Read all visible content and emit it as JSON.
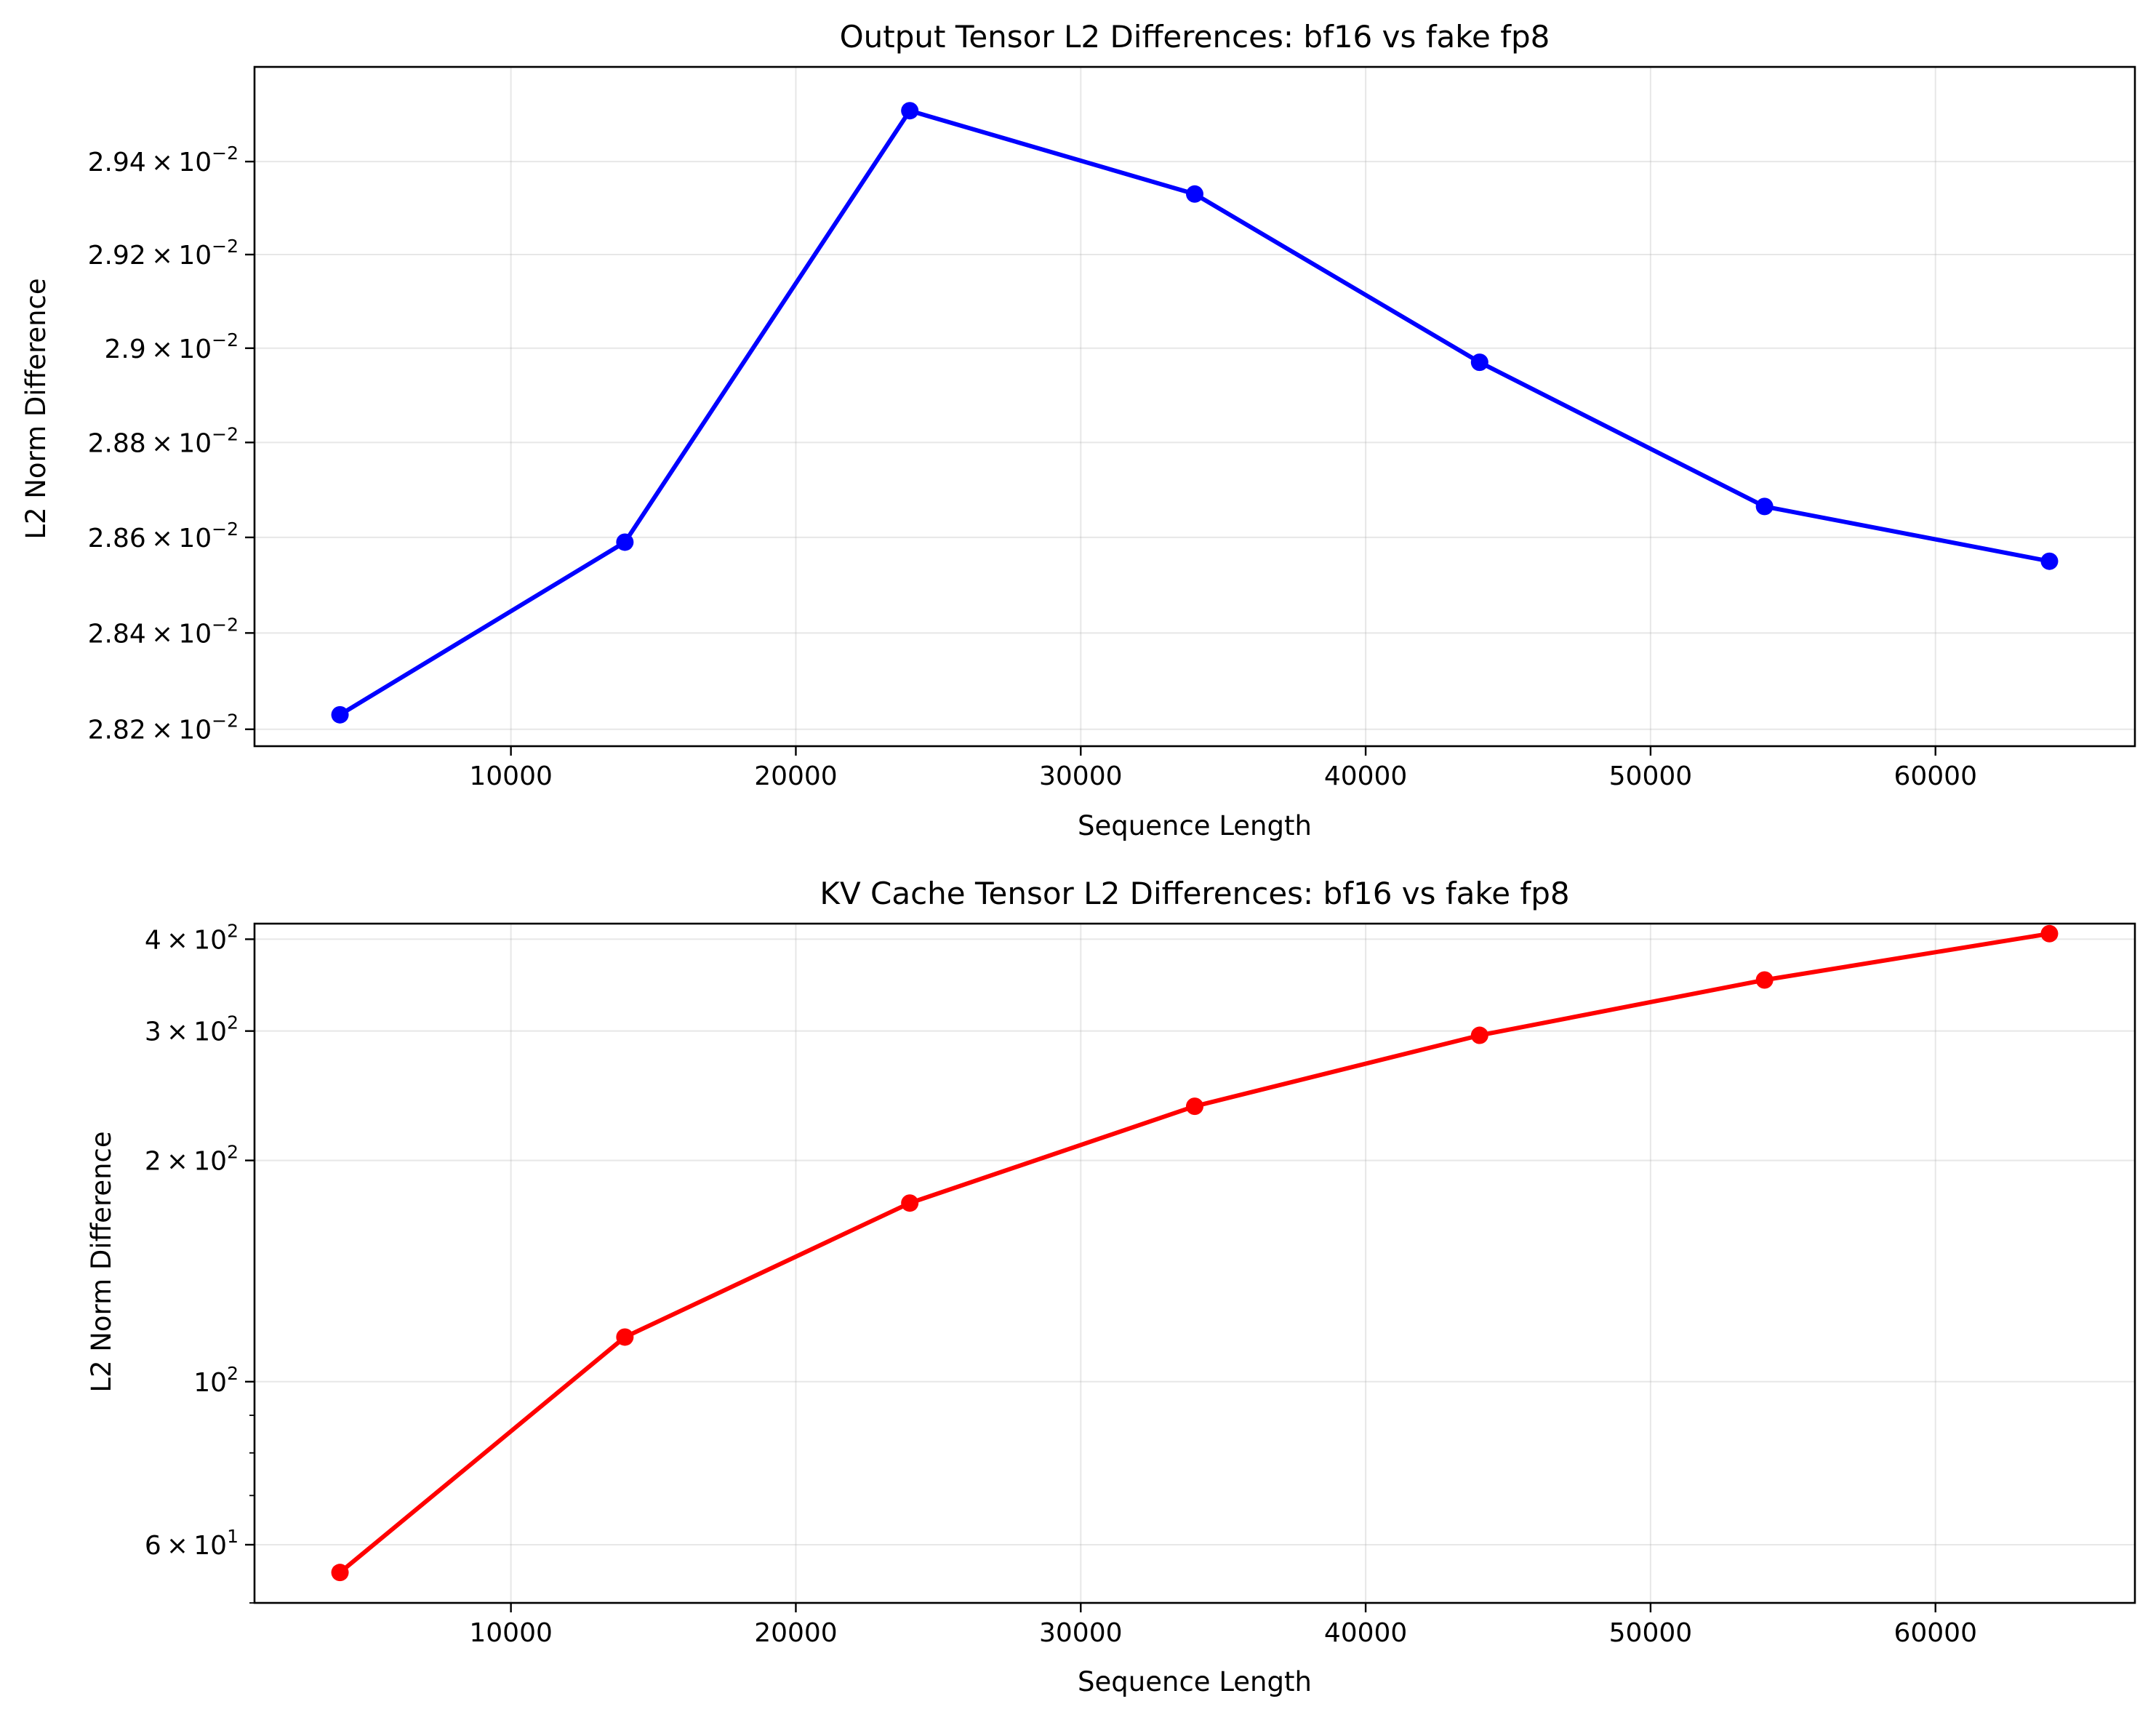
{
  "chart_data": [
    {
      "type": "line",
      "title": "Output Tensor L2 Differences: bf16 vs fake fp8",
      "xlabel": "Sequence Length",
      "ylabel": "L2 Norm Difference",
      "yscale": "log",
      "grid": true,
      "x": [
        4000,
        14000,
        24000,
        34000,
        44000,
        54000,
        64000
      ],
      "series": [
        {
          "values": [
            0.02823,
            0.02859,
            0.02951,
            0.02933,
            0.02897,
            0.028665,
            0.02855
          ],
          "color": "#0000ff",
          "marker": "circle"
        }
      ],
      "xlim": [
        1000,
        67000
      ],
      "ylim": [
        0.028165,
        0.029605
      ],
      "xticks": [
        10000,
        20000,
        30000,
        40000,
        50000,
        60000
      ],
      "xtick_labels": [
        "10000",
        "20000",
        "30000",
        "40000",
        "50000",
        "60000"
      ],
      "yticks": [
        0.0282,
        0.0284,
        0.0286,
        0.0288,
        0.029,
        0.0292,
        0.0294
      ],
      "ytick_labels": [
        {
          "mantissa": "2.82",
          "times": "×",
          "base": "10",
          "exp": "−2"
        },
        {
          "mantissa": "2.84",
          "times": "×",
          "base": "10",
          "exp": "−2"
        },
        {
          "mantissa": "2.86",
          "times": "×",
          "base": "10",
          "exp": "−2"
        },
        {
          "mantissa": "2.88",
          "times": "×",
          "base": "10",
          "exp": "−2"
        },
        {
          "mantissa": "2.9",
          "times": "×",
          "base": "10",
          "exp": "−2"
        },
        {
          "mantissa": "2.92",
          "times": "×",
          "base": "10",
          "exp": "−2"
        },
        {
          "mantissa": "2.94",
          "times": "×",
          "base": "10",
          "exp": "−2"
        }
      ],
      "yminor": []
    },
    {
      "type": "line",
      "title": "KV Cache Tensor L2 Differences: bf16 vs fake fp8",
      "xlabel": "Sequence Length",
      "ylabel": "L2 Norm Difference",
      "yscale": "log",
      "grid": true,
      "x": [
        4000,
        14000,
        24000,
        34000,
        44000,
        54000,
        64000
      ],
      "series": [
        {
          "values": [
            55,
            115,
            175,
            237,
            296,
            352,
            407
          ],
          "color": "#ff0000",
          "marker": "circle"
        }
      ],
      "xlim": [
        1000,
        67000
      ],
      "ylim": [
        50,
        420
      ],
      "xticks": [
        10000,
        20000,
        30000,
        40000,
        50000,
        60000
      ],
      "xtick_labels": [
        "10000",
        "20000",
        "30000",
        "40000",
        "50000",
        "60000"
      ],
      "yticks": [
        60,
        100,
        200,
        300,
        400
      ],
      "ytick_labels": [
        {
          "mantissa": "6",
          "times": "×",
          "base": "10",
          "exp": "1"
        },
        {
          "mantissa": "",
          "times": "",
          "base": "10",
          "exp": "2"
        },
        {
          "mantissa": "2",
          "times": "×",
          "base": "10",
          "exp": "2"
        },
        {
          "mantissa": "3",
          "times": "×",
          "base": "10",
          "exp": "2"
        },
        {
          "mantissa": "4",
          "times": "×",
          "base": "10",
          "exp": "2"
        }
      ],
      "yminor": [
        50,
        70,
        80,
        90
      ]
    }
  ]
}
